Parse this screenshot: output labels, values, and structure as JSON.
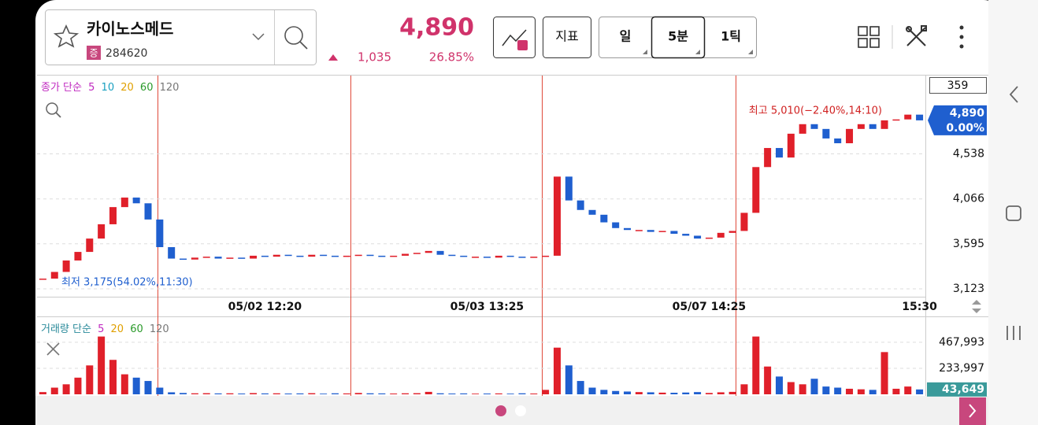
{
  "header": {
    "stock_name": "카이노스메드",
    "badge": "증",
    "code": "284620",
    "price": "4,890",
    "change": "1,035",
    "change_rate": "26.85%",
    "indicator_button": "지표",
    "periods": [
      "일",
      "5분",
      "1틱"
    ]
  },
  "chart_data": [
    {
      "type": "candlestick",
      "legend": {
        "label": "종가 단순",
        "periods": [
          5,
          10,
          20,
          60,
          120
        ]
      },
      "count_badge": "359",
      "high_label": "최고 5,010(−2.40%,14:10)",
      "low_label": "최저 3,175(54.02%,11:30)",
      "last_price": "4,890",
      "last_change": "0.00%",
      "categories": [
        null,
        null,
        null,
        null,
        null,
        null,
        null,
        null,
        null,
        null,
        null,
        null,
        null,
        null,
        null,
        null,
        null,
        null,
        null,
        "05/02 12:20",
        null,
        null,
        null,
        null,
        null,
        null,
        null,
        null,
        null,
        null,
        null,
        null,
        null,
        null,
        null,
        null,
        null,
        null,
        "05/03 13:25",
        null,
        null,
        null,
        null,
        null,
        null,
        null,
        null,
        null,
        null,
        null,
        null,
        null,
        null,
        null,
        null,
        null,
        null,
        "05/07 14:25",
        null,
        null,
        null,
        null,
        null,
        null,
        null,
        null,
        null,
        null,
        null,
        null,
        null,
        null,
        null,
        null,
        null,
        "15:30"
      ],
      "values": [
        3230,
        3300,
        3420,
        3510,
        3650,
        3800,
        3980,
        4080,
        4020,
        3850,
        3560,
        3440,
        3430,
        3450,
        3460,
        3440,
        3450,
        3440,
        3470,
        3460,
        3480,
        3470,
        3460,
        3480,
        3470,
        3460,
        3470,
        3480,
        3470,
        3460,
        3470,
        3490,
        3500,
        3520,
        3480,
        3470,
        3460,
        3460,
        3450,
        3470,
        3460,
        3450,
        3460,
        3470,
        4300,
        4050,
        3950,
        3900,
        3820,
        3760,
        3740,
        3740,
        3720,
        3730,
        3700,
        3680,
        3650,
        3660,
        3710,
        3730,
        3920,
        4400,
        4600,
        4500,
        4750,
        4850,
        4800,
        4700,
        4650,
        4800,
        4850,
        4800,
        4890,
        4900,
        4950,
        4890
      ],
      "up_color": "#e0202a",
      "down_color": "#1f5fcf",
      "ylim": [
        3040,
        5360
      ],
      "yticks": [
        {
          "value": 3123,
          "label": "3,123"
        },
        {
          "value": 3595,
          "label": "3,595"
        },
        {
          "value": 4066,
          "label": "4,066"
        },
        {
          "value": 4538,
          "label": "4,538"
        }
      ],
      "grid": true
    },
    {
      "type": "bar",
      "legend": {
        "label": "거래량 단순",
        "periods": [
          5,
          20,
          60,
          120
        ]
      },
      "values": [
        20000,
        60000,
        90000,
        150000,
        260000,
        520000,
        310000,
        180000,
        150000,
        120000,
        60000,
        18000,
        12000,
        9000,
        10000,
        8000,
        9000,
        7000,
        11000,
        8000,
        9000,
        7000,
        8000,
        10000,
        6000,
        9000,
        8000,
        12000,
        9000,
        8000,
        7000,
        9000,
        10000,
        22000,
        9000,
        7000,
        8000,
        6000,
        7000,
        8000,
        6000,
        9000,
        7000,
        40000,
        420000,
        260000,
        120000,
        60000,
        40000,
        30000,
        25000,
        20000,
        18000,
        15000,
        14000,
        16000,
        20000,
        12000,
        18000,
        22000,
        90000,
        520000,
        250000,
        160000,
        110000,
        90000,
        140000,
        70000,
        60000,
        50000,
        45000,
        40000,
        380000,
        50000,
        70000,
        43649
      ],
      "ylim": [
        0,
        680000
      ],
      "yticks": [
        {
          "value": 233997,
          "label": "233,997"
        },
        {
          "value": 467993,
          "label": "467,993"
        }
      ],
      "last_value": {
        "value": 43649,
        "label": "43,649"
      },
      "grid": true
    }
  ]
}
